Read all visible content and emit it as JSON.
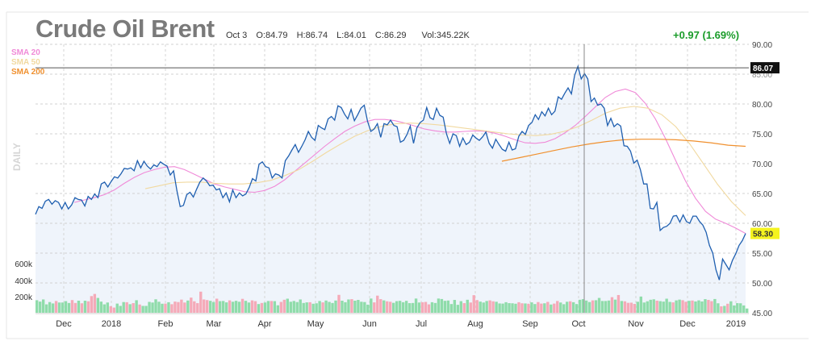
{
  "header": {
    "title": "Crude Oil Brent",
    "date": "Oct 3",
    "open": "O:84.79",
    "high": "H:86.74",
    "low": "L:84.01",
    "close": "C:86.29",
    "volume": "Vol:345.22K",
    "change": "+0.97 (1.69%)"
  },
  "legend": [
    {
      "label": "SMA 20",
      "color": "#f08ad8"
    },
    {
      "label": "SMA 50",
      "color": "#f1d9a0"
    },
    {
      "label": "SMA 200",
      "color": "#f0902e"
    }
  ],
  "side_label": "DAILY",
  "colors": {
    "price_line": "#1f5fb0",
    "area": "#e9f0fa",
    "vol_up": "#8fdcaa",
    "vol_down": "#f5aab8"
  },
  "chart_data": {
    "type": "line",
    "x_labels": [
      "Dec",
      "2018",
      "Feb",
      "Mar",
      "Apr",
      "May",
      "Jun",
      "Jul",
      "Aug",
      "Sep",
      "Oct",
      "Nov",
      "Dec",
      "2019"
    ],
    "y_ticks": [
      "90.00",
      "85.00",
      "80.00",
      "75.00",
      "70.00",
      "65.00",
      "60.00",
      "55.00",
      "50.00",
      "45.00"
    ],
    "ylim": [
      45,
      90
    ],
    "volume_ticks": [
      "600k",
      "400k",
      "200k"
    ],
    "price_marker": "86.07",
    "last_price_marker": "58.30",
    "grid": true,
    "series": [
      {
        "name": "",
        "values": [
          61.5,
          62.8,
          62.5,
          63.7,
          64.0,
          63.2,
          63.8,
          63.5,
          62.4,
          63.5,
          62.4,
          63.1,
          64.3,
          64.0,
          63.9,
          62.9,
          64.5,
          64.0,
          64.9,
          64.3,
          66.6,
          66.9,
          66.1,
          67.0,
          67.8,
          67.6,
          68.3,
          69.2,
          69.1,
          69.3,
          68.8,
          70.5,
          69.3,
          70.4,
          69.6,
          69.1,
          69.8,
          69.5,
          70.3,
          69.9,
          69.6,
          68.1,
          68.8,
          65.5,
          62.8,
          63.0,
          64.8,
          65.2,
          64.4,
          65.7,
          66.9,
          67.6,
          67.1,
          66.3,
          66.4,
          65.6,
          65.8,
          64.3,
          65.1,
          63.6,
          65.6,
          64.3,
          65.1,
          64.6,
          64.9,
          66.0,
          67.5,
          67.1,
          69.9,
          70.3,
          69.5,
          69.3,
          67.6,
          68.3,
          68.1,
          67.6,
          70.5,
          71.3,
          72.3,
          73.2,
          71.9,
          72.9,
          74.0,
          75.4,
          74.4,
          73.9,
          76.4,
          76.0,
          75.7,
          77.5,
          77.9,
          77.3,
          79.7,
          79.4,
          78.3,
          77.5,
          79.1,
          77.2,
          78.2,
          79.3,
          79.8,
          77.1,
          75.4,
          75.8,
          76.7,
          74.4,
          76.7,
          76.5,
          77.3,
          76.4,
          76.2,
          73.6,
          73.9,
          74.9,
          76.3,
          73.4,
          76.0,
          76.9,
          77.3,
          79.4,
          77.7,
          77.4,
          79.3,
          78.1,
          77.8,
          75.0,
          73.4,
          75.0,
          74.7,
          72.9,
          74.3,
          73.2,
          73.6,
          74.8,
          74.3,
          73.9,
          74.5,
          75.3,
          73.4,
          72.6,
          74.1,
          73.2,
          72.4,
          72.1,
          73.6,
          72.3,
          72.5,
          74.6,
          75.4,
          74.9,
          76.4,
          76.9,
          78.2,
          77.4,
          78.7,
          78.0,
          79.3,
          78.2,
          78.8,
          81.2,
          80.8,
          81.8,
          82.7,
          81.7,
          84.8,
          86.3,
          84.2,
          85.1,
          84.2,
          80.4,
          81.0,
          79.8,
          80.0,
          79.3,
          76.4,
          77.6,
          76.2,
          76.7,
          76.3,
          73.0,
          72.9,
          72.1,
          70.1,
          70.6,
          69.0,
          66.6,
          66.6,
          62.5,
          62.4,
          63.5,
          58.8,
          59.3,
          59.5,
          60.0,
          61.2,
          61.3,
          60.2,
          61.4,
          60.3,
          60.0,
          61.2,
          61.2,
          60.3,
          59.7,
          58.5,
          56.3,
          55.0,
          52.2,
          50.5,
          54.0,
          53.1,
          52.2,
          53.8,
          54.9,
          56.3,
          57.1,
          58.3
        ],
        "color": "#1f5fb0"
      },
      {
        "name": "SMA 20",
        "values": [
          63.5,
          63.9,
          64.3,
          64.8,
          65.6,
          66.7,
          67.7,
          68.5,
          69.0,
          69.4,
          69.5,
          69.0,
          68.2,
          67.4,
          66.6,
          66.1,
          65.7,
          65.3,
          65.2,
          65.5,
          66.2,
          67.3,
          68.7,
          70.1,
          71.5,
          72.9,
          74.2,
          75.4,
          76.3,
          77.0,
          77.4,
          77.4,
          77.2,
          76.8,
          76.3,
          75.8,
          75.5,
          75.3,
          75.3,
          75.4,
          75.5,
          75.4,
          75.1,
          74.6,
          74.0,
          73.5,
          73.4,
          73.6,
          74.2,
          75.2,
          76.4,
          77.9,
          79.5,
          81.1,
          82.1,
          82.5,
          81.9,
          80.1,
          77.5,
          74.2,
          70.6,
          67.1,
          64.2,
          62.0,
          60.7,
          60.0,
          59.2,
          58.3
        ],
        "color": "#f08ad8"
      },
      {
        "name": "SMA 50",
        "values": [
          65.8,
          66.3,
          66.8,
          66.9,
          66.9,
          66.7,
          66.6,
          66.6,
          66.8,
          67.2,
          68.0,
          69.0,
          70.4,
          71.9,
          73.3,
          74.6,
          75.6,
          76.3,
          76.7,
          76.8,
          76.7,
          76.5,
          76.2,
          75.9,
          75.6,
          75.3,
          75.0,
          74.8,
          74.7,
          74.9,
          75.4,
          76.2,
          77.3,
          78.5,
          79.3,
          79.6,
          79.3,
          78.2,
          76.2,
          73.3,
          69.9,
          66.5,
          63.6,
          61.3
        ],
        "color": "#f1d9a0"
      },
      {
        "name": "SMA 200",
        "values": [
          70.4,
          71.0,
          71.6,
          72.2,
          72.8,
          73.3,
          73.7,
          74.0,
          74.1,
          74.1,
          74.0,
          73.8,
          73.5,
          73.1,
          72.9
        ],
        "color": "#f0902e"
      }
    ],
    "volume": [
      [
        0.82,
        1
      ],
      [
        0.73,
        1
      ],
      [
        0.87,
        1
      ],
      [
        0.55,
        1
      ],
      [
        0.7,
        1
      ],
      [
        0.61,
        1
      ],
      [
        0.77,
        0
      ],
      [
        0.67,
        1
      ],
      [
        0.67,
        1
      ],
      [
        0.76,
        1
      ],
      [
        0.64,
        1
      ],
      [
        0.83,
        0
      ],
      [
        0.64,
        0
      ],
      [
        0.79,
        1
      ],
      [
        0.62,
        0
      ],
      [
        0.79,
        1
      ],
      [
        0.75,
        0
      ],
      [
        1.09,
        0
      ],
      [
        1.23,
        0
      ],
      [
        0.97,
        1
      ],
      [
        0.73,
        1
      ],
      [
        0.55,
        1
      ],
      [
        0.67,
        1
      ],
      [
        0.43,
        0
      ],
      [
        0.34,
        0
      ],
      [
        0.6,
        1
      ],
      [
        0.45,
        1
      ],
      [
        0.7,
        1
      ],
      [
        0.69,
        0
      ],
      [
        0.56,
        1
      ],
      [
        0.63,
        0
      ],
      [
        0.82,
        1
      ],
      [
        0.54,
        0
      ],
      [
        0.45,
        1
      ],
      [
        0.45,
        1
      ],
      [
        0.71,
        1
      ],
      [
        0.67,
        1
      ],
      [
        0.88,
        1
      ],
      [
        0.72,
        1
      ],
      [
        0.59,
        1
      ],
      [
        0.6,
        0
      ],
      [
        0.69,
        1
      ],
      [
        0.56,
        0
      ],
      [
        0.73,
        0
      ],
      [
        0.7,
        0
      ],
      [
        0.86,
        0
      ],
      [
        0.67,
        0
      ],
      [
        0.8,
        1
      ],
      [
        0.99,
        0
      ],
      [
        0.75,
        0
      ],
      [
        0.63,
        0
      ],
      [
        1.38,
        0
      ],
      [
        0.87,
        0
      ],
      [
        0.83,
        0
      ],
      [
        0.78,
        1
      ],
      [
        0.7,
        1
      ],
      [
        0.92,
        0
      ],
      [
        0.76,
        1
      ],
      [
        0.77,
        1
      ],
      [
        0.68,
        1
      ],
      [
        0.81,
        0
      ],
      [
        0.72,
        1
      ],
      [
        0.78,
        1
      ],
      [
        0.72,
        1
      ],
      [
        0.91,
        0
      ],
      [
        0.78,
        1
      ],
      [
        0.67,
        1
      ],
      [
        0.81,
        0
      ],
      [
        0.76,
        0
      ],
      [
        0.57,
        1
      ],
      [
        0.64,
        0
      ],
      [
        0.67,
        1
      ],
      [
        0.77,
        1
      ],
      [
        0.77,
        0
      ],
      [
        0.76,
        1
      ],
      [
        0.49,
        1
      ],
      [
        0.71,
        0
      ],
      [
        0.85,
        0
      ],
      [
        0.92,
        1
      ],
      [
        0.72,
        1
      ],
      [
        0.77,
        1
      ],
      [
        0.7,
        1
      ],
      [
        0.87,
        1
      ],
      [
        0.64,
        1
      ],
      [
        0.68,
        1
      ],
      [
        0.69,
        0
      ],
      [
        0.59,
        1
      ],
      [
        0.62,
        1
      ],
      [
        0.77,
        1
      ],
      [
        0.68,
        0
      ],
      [
        0.8,
        1
      ],
      [
        0.71,
        1
      ],
      [
        0.64,
        1
      ],
      [
        0.8,
        1
      ],
      [
        1.17,
        0
      ],
      [
        0.79,
        1
      ],
      [
        0.69,
        1
      ],
      [
        0.87,
        1
      ],
      [
        0.89,
        0
      ],
      [
        0.79,
        1
      ],
      [
        0.84,
        1
      ],
      [
        0.72,
        1
      ],
      [
        0.7,
        1
      ],
      [
        0.53,
        1
      ],
      [
        0.93,
        1
      ],
      [
        0.68,
        0
      ],
      [
        1.12,
        0
      ],
      [
        0.89,
        0
      ],
      [
        0.81,
        1
      ],
      [
        0.75,
        0
      ],
      [
        0.72,
        0
      ],
      [
        0.65,
        1
      ],
      [
        0.76,
        1
      ],
      [
        0.78,
        1
      ],
      [
        0.69,
        1
      ],
      [
        0.78,
        1
      ],
      [
        0.63,
        1
      ],
      [
        0.64,
        1
      ],
      [
        0.93,
        1
      ],
      [
        0.67,
        1
      ],
      [
        0.69,
        0
      ],
      [
        0.71,
        0
      ],
      [
        0.55,
        0
      ],
      [
        0.69,
        1
      ],
      [
        0.64,
        1
      ],
      [
        0.93,
        1
      ],
      [
        0.9,
        1
      ],
      [
        0.78,
        1
      ],
      [
        0.8,
        1
      ],
      [
        0.57,
        1
      ],
      [
        0.84,
        1
      ],
      [
        0.52,
        1
      ],
      [
        0.76,
        1
      ],
      [
        0.63,
        0
      ],
      [
        0.85,
        1
      ],
      [
        0.67,
        0
      ],
      [
        1.15,
        0
      ],
      [
        0.83,
        0
      ],
      [
        0.73,
        1
      ],
      [
        0.67,
        1
      ],
      [
        0.77,
        1
      ],
      [
        0.81,
        0
      ],
      [
        0.75,
        0
      ],
      [
        0.72,
        1
      ],
      [
        0.61,
        1
      ],
      [
        0.6,
        1
      ],
      [
        0.69,
        1
      ],
      [
        0.63,
        1
      ],
      [
        0.62,
        1
      ],
      [
        0.59,
        1
      ],
      [
        0.69,
        0
      ],
      [
        0.62,
        0
      ],
      [
        0.61,
        1
      ],
      [
        0.59,
        0
      ],
      [
        0.68,
        1
      ],
      [
        0.57,
        1
      ],
      [
        0.7,
        0
      ],
      [
        0.6,
        0
      ],
      [
        0.62,
        1
      ],
      [
        0.71,
        0
      ],
      [
        0.54,
        1
      ],
      [
        0.6,
        0
      ],
      [
        0.77,
        0
      ],
      [
        0.67,
        1
      ],
      [
        0.56,
        1
      ],
      [
        0.72,
        1
      ],
      [
        0.75,
        0
      ],
      [
        0.69,
        1
      ],
      [
        0.57,
        1
      ],
      [
        0.85,
        1
      ],
      [
        0.89,
        1
      ],
      [
        0.8,
        1
      ],
      [
        0.7,
        1
      ],
      [
        0.81,
        0
      ],
      [
        0.82,
        1
      ],
      [
        0.97,
        1
      ],
      [
        0.77,
        1
      ],
      [
        0.77,
        1
      ],
      [
        0.8,
        1
      ],
      [
        1.02,
        0
      ],
      [
        0.86,
        1
      ],
      [
        1.16,
        0
      ],
      [
        0.77,
        1
      ],
      [
        0.75,
        0
      ],
      [
        0.65,
        0
      ],
      [
        0.66,
        0
      ],
      [
        0.58,
        0
      ],
      [
        0.72,
        1
      ],
      [
        1.06,
        1
      ],
      [
        0.67,
        1
      ],
      [
        0.75,
        1
      ],
      [
        0.85,
        1
      ],
      [
        0.88,
        1
      ],
      [
        0.79,
        0
      ],
      [
        0.76,
        1
      ],
      [
        0.73,
        1
      ],
      [
        0.92,
        1
      ],
      [
        0.71,
        1
      ],
      [
        0.68,
        0
      ],
      [
        0.81,
        1
      ],
      [
        0.86,
        1
      ],
      [
        0.82,
        0
      ],
      [
        0.72,
        0
      ],
      [
        0.78,
        1
      ],
      [
        0.8,
        0
      ],
      [
        0.74,
        1
      ],
      [
        0.81,
        1
      ],
      [
        0.74,
        1
      ],
      [
        0.89,
        1
      ],
      [
        0.84,
        0
      ],
      [
        0.76,
        0
      ],
      [
        0.9,
        1
      ],
      [
        0.62,
        1
      ],
      [
        0.42,
        0
      ],
      [
        0.45,
        1
      ],
      [
        0.59,
        0
      ],
      [
        0.75,
        1
      ],
      [
        0.48,
        1
      ],
      [
        0.63,
        1
      ],
      [
        0.62,
        1
      ],
      [
        0.48,
        1
      ],
      [
        0.28,
        1
      ]
    ]
  }
}
